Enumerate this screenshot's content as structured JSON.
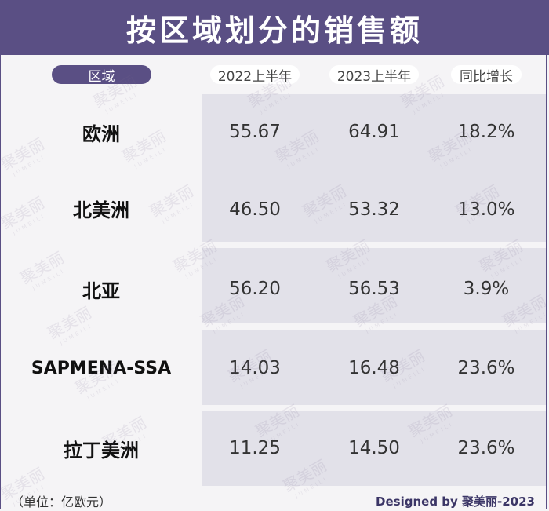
{
  "title": "按区域划分的销售额",
  "headers": {
    "region": "区域",
    "col1": "2022上半年",
    "col2": "2023上半年",
    "col3": "同比增长"
  },
  "rows": [
    {
      "region": "欧洲",
      "h1_2022": "55.67",
      "h1_2023": "64.91",
      "growth": "18.2%"
    },
    {
      "region": "北美洲",
      "h1_2022": "46.50",
      "h1_2023": "53.32",
      "growth": "13.0%"
    },
    {
      "region": "北亚",
      "h1_2022": "56.20",
      "h1_2023": "56.53",
      "growth": "3.9%"
    },
    {
      "region": "SAPMENA-SSA",
      "h1_2022": "14.03",
      "h1_2023": "16.48",
      "growth": "23.6%"
    },
    {
      "region": "拉丁美洲",
      "h1_2022": "11.25",
      "h1_2023": "14.50",
      "growth": "23.6%"
    }
  ],
  "footer": {
    "unit": "（单位：亿欧元）",
    "credit": "Designed by 聚美丽-2023"
  },
  "watermark": {
    "text": "聚美丽",
    "subtext": "JUMEILI"
  },
  "colors": {
    "accent": "#5a4f84",
    "row_fill": "#e2e1e9",
    "background": "#f5f4f6"
  }
}
